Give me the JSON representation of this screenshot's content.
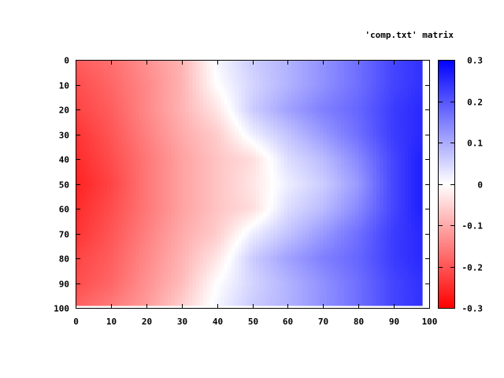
{
  "chart_data": {
    "type": "heatmap",
    "title": "",
    "xlabel": "",
    "ylabel": "",
    "legend": "'comp.txt' matrix",
    "legend_position": "top-right",
    "xlim": [
      0,
      100
    ],
    "ylim": [
      100,
      0
    ],
    "x_ticks": [
      0,
      10,
      20,
      30,
      40,
      50,
      60,
      70,
      80,
      90,
      100
    ],
    "y_ticks": [
      0,
      10,
      20,
      30,
      40,
      50,
      60,
      70,
      80,
      90,
      100
    ],
    "x_tick_labels": [
      "0",
      "10",
      "20",
      "30",
      "40",
      "50",
      "60",
      "70",
      "80",
      "90",
      "100"
    ],
    "y_tick_labels": [
      "0",
      "10",
      "20",
      "30",
      "40",
      "50",
      "60",
      "70",
      "80",
      "90",
      "100"
    ],
    "colorbar": {
      "range": [
        -0.3,
        0.3
      ],
      "ticks": [
        0.3,
        0.2,
        0.1,
        0,
        -0.1,
        -0.2,
        -0.3
      ],
      "tick_labels": [
        "0.3",
        "0.2",
        "0.1",
        "0",
        "-0.1",
        "-0.2",
        "-0.3"
      ],
      "colors": {
        "low": "#ff0000",
        "mid": "#ffffff",
        "high": "#0000ff"
      }
    },
    "grid": false,
    "matrix_columns": [
      0,
      10,
      20,
      30,
      40,
      50,
      60,
      70,
      80,
      90,
      97
    ],
    "matrix_rows": [
      0,
      10,
      20,
      30,
      40,
      50,
      60,
      70,
      80,
      90,
      98
    ],
    "matrix_values": [
      [
        -0.19,
        -0.17,
        -0.13,
        -0.09,
        0.01,
        0.06,
        0.09,
        0.13,
        0.17,
        0.22,
        0.24
      ],
      [
        -0.21,
        -0.18,
        -0.14,
        -0.09,
        0.0,
        0.05,
        0.09,
        0.13,
        0.17,
        0.22,
        0.24
      ],
      [
        -0.22,
        -0.19,
        -0.14,
        -0.09,
        -0.03,
        0.06,
        0.11,
        0.15,
        0.18,
        0.23,
        0.25
      ],
      [
        -0.24,
        -0.2,
        -0.15,
        -0.1,
        -0.06,
        0.02,
        0.07,
        0.12,
        0.17,
        0.23,
        0.25
      ],
      [
        -0.25,
        -0.21,
        -0.16,
        -0.11,
        -0.07,
        -0.04,
        0.04,
        0.08,
        0.14,
        0.22,
        0.26
      ],
      [
        -0.26,
        -0.22,
        -0.16,
        -0.11,
        -0.07,
        -0.03,
        0.02,
        0.06,
        0.12,
        0.22,
        0.26
      ],
      [
        -0.25,
        -0.21,
        -0.16,
        -0.11,
        -0.07,
        -0.04,
        0.04,
        0.08,
        0.14,
        0.22,
        0.26
      ],
      [
        -0.24,
        -0.2,
        -0.15,
        -0.1,
        -0.06,
        0.02,
        0.07,
        0.12,
        0.17,
        0.23,
        0.25
      ],
      [
        -0.22,
        -0.19,
        -0.14,
        -0.09,
        -0.03,
        0.06,
        0.11,
        0.15,
        0.18,
        0.23,
        0.25
      ],
      [
        -0.21,
        -0.18,
        -0.13,
        -0.08,
        0.0,
        0.05,
        0.09,
        0.13,
        0.17,
        0.22,
        0.24
      ],
      [
        -0.19,
        -0.16,
        -0.12,
        -0.06,
        0.01,
        0.06,
        0.09,
        0.13,
        0.17,
        0.22,
        0.24
      ]
    ]
  }
}
